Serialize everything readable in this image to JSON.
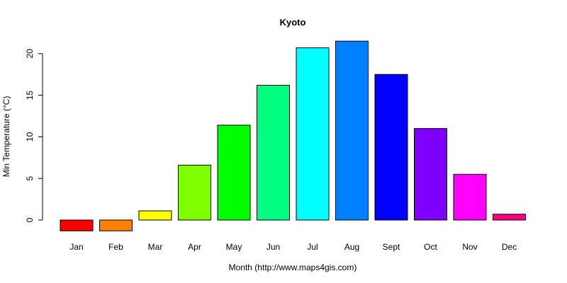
{
  "chart_data": {
    "type": "bar",
    "title": "Kyoto",
    "xlabel": "Month (http://www.maps4gis.com)",
    "ylabel": "Min Temperature (°C)",
    "categories": [
      "Jan",
      "Feb",
      "Mar",
      "Apr",
      "May",
      "Jun",
      "Jul",
      "Aug",
      "Sept",
      "Oct",
      "Nov",
      "Dec"
    ],
    "values": [
      -1.3,
      -1.3,
      1.1,
      6.6,
      11.4,
      16.2,
      20.7,
      21.5,
      17.5,
      11.0,
      5.5,
      0.7
    ],
    "colors": [
      "#FF0000",
      "#FF8000",
      "#FFFF00",
      "#80FF00",
      "#00FF00",
      "#00FF80",
      "#00FFFF",
      "#0080FF",
      "#0000FF",
      "#8000FF",
      "#FF00FF",
      "#FF0080"
    ],
    "yticks": [
      0,
      5,
      10,
      15,
      20
    ],
    "ylim": [
      -1.3,
      21.5
    ],
    "grid": false,
    "legend": "none"
  }
}
